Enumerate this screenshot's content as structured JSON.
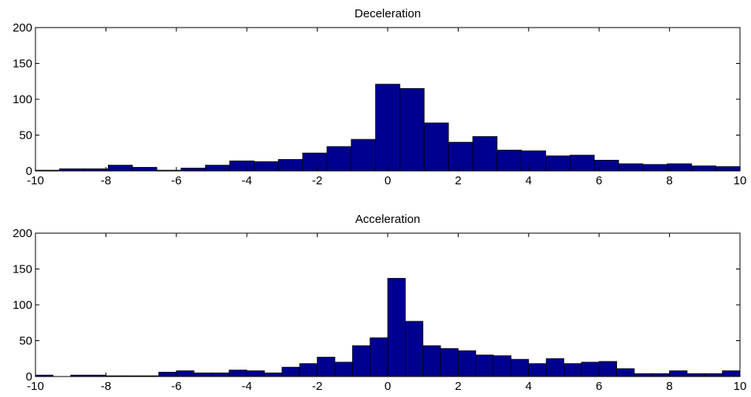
{
  "chart_data": [
    {
      "type": "bar",
      "title": "Deceleration",
      "xlabel": "",
      "ylabel": "",
      "xlim": [
        -10,
        10
      ],
      "ylim": [
        0,
        200
      ],
      "xticks": [
        -10,
        -8,
        -6,
        -4,
        -2,
        0,
        2,
        4,
        6,
        8,
        10
      ],
      "yticks": [
        0,
        50,
        100,
        150,
        200
      ],
      "grid": false,
      "bar_color": "#00008F",
      "bins": [
        -9.66,
        -8.97,
        -8.28,
        -7.59,
        -6.9,
        -6.21,
        -5.52,
        -4.83,
        -4.14,
        -3.45,
        -2.76,
        -2.07,
        -1.38,
        -0.69,
        0.0,
        0.69,
        1.38,
        2.07,
        2.76,
        3.45,
        4.14,
        4.83,
        5.52,
        6.21,
        6.9,
        7.59,
        8.28,
        8.97,
        9.66
      ],
      "values": [
        1,
        3,
        3,
        8,
        5,
        1,
        4,
        8,
        14,
        13,
        16,
        25,
        34,
        44,
        121,
        115,
        67,
        40,
        48,
        29,
        28,
        21,
        22,
        15,
        10,
        9,
        10,
        7,
        6
      ]
    },
    {
      "type": "bar",
      "title": "Acceleration",
      "xlabel": "",
      "ylabel": "",
      "xlim": [
        -10,
        10
      ],
      "ylim": [
        0,
        200
      ],
      "xticks": [
        -10,
        -8,
        -6,
        -4,
        -2,
        0,
        2,
        4,
        6,
        8,
        10
      ],
      "yticks": [
        0,
        50,
        100,
        150,
        200
      ],
      "grid": false,
      "bar_color": "#00008F",
      "bins": [
        -9.75,
        -9.25,
        -8.75,
        -8.25,
        -7.75,
        -7.25,
        -6.75,
        -6.25,
        -5.75,
        -5.25,
        -4.75,
        -4.25,
        -3.75,
        -3.25,
        -2.75,
        -2.25,
        -1.75,
        -1.25,
        -0.75,
        -0.25,
        0.25,
        0.75,
        1.25,
        1.75,
        2.25,
        2.75,
        3.25,
        3.75,
        4.25,
        4.75,
        5.25,
        5.75,
        6.25,
        6.75,
        7.25,
        7.75,
        8.25,
        8.75,
        9.25,
        9.75
      ],
      "values": [
        2,
        0,
        2,
        2,
        1,
        1,
        1,
        6,
        8,
        5,
        5,
        9,
        8,
        5,
        13,
        18,
        27,
        20,
        43,
        54,
        137,
        77,
        43,
        39,
        36,
        30,
        29,
        24,
        18,
        25,
        18,
        20,
        21,
        11,
        4,
        4,
        8,
        4,
        4,
        8
      ]
    }
  ]
}
